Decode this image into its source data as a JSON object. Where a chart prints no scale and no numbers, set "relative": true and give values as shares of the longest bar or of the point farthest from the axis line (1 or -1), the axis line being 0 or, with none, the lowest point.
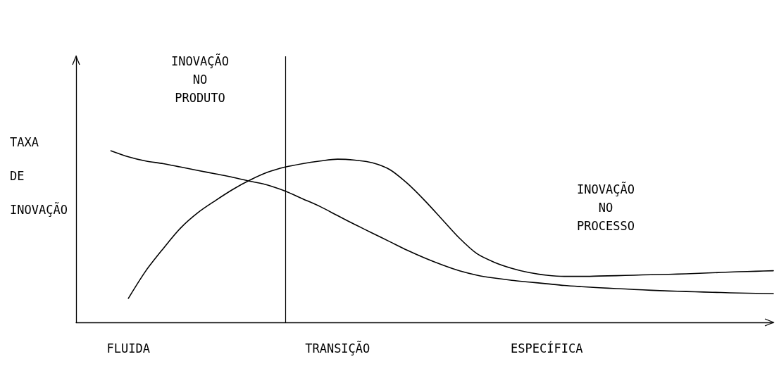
{
  "chart_data": {
    "type": "line",
    "relative": true,
    "ylabel": "TAXA DE INOVAÇÃO",
    "categories": [
      null,
      null,
      null,
      "FLUIDA",
      null,
      null,
      null,
      null,
      null,
      null,
      null,
      null,
      null,
      null,
      null,
      "TRANSIÇÃO",
      null,
      null,
      null,
      null,
      null,
      null,
      null,
      null,
      null,
      null,
      null,
      "ESPECÍFICA",
      null,
      null,
      null,
      null,
      null,
      null,
      null,
      null,
      null,
      null,
      null,
      null,
      null
    ],
    "marker": "none",
    "line_style": "solid",
    "annotations": [
      "INOVAÇÃO NO PRODUTO",
      "INOVAÇÃO NO PROCESSO"
    ],
    "series": [
      {
        "color": "#000000",
        "values": [
          null,
          null,
          1.0,
          0.965,
          0.94,
          0.925,
          0.905,
          0.885,
          0.865,
          0.845,
          0.822,
          0.8,
          0.765,
          0.72,
          0.675,
          0.622,
          0.57,
          0.52,
          0.47,
          0.42,
          0.375,
          0.335,
          0.3,
          0.275,
          0.258,
          0.245,
          0.235,
          0.225,
          0.215,
          0.208,
          0.202,
          0.197,
          0.192,
          0.187,
          0.183,
          0.18,
          0.177,
          0.174,
          0.171,
          0.169,
          0.167
        ]
      },
      {
        "color": "#000000",
        "values": [
          null,
          null,
          null,
          0.14,
          0.3,
          0.43,
          0.55,
          0.64,
          0.71,
          0.775,
          0.83,
          0.875,
          0.905,
          0.925,
          0.94,
          0.951,
          0.945,
          0.93,
          0.89,
          0.81,
          0.71,
          0.6,
          0.49,
          0.4,
          0.35,
          0.315,
          0.29,
          0.275,
          0.268,
          0.268,
          0.27,
          0.272,
          0.275,
          0.278,
          0.28,
          0.283,
          0.287,
          0.291,
          0.295,
          0.298,
          0.301
        ]
      }
    ]
  }
}
